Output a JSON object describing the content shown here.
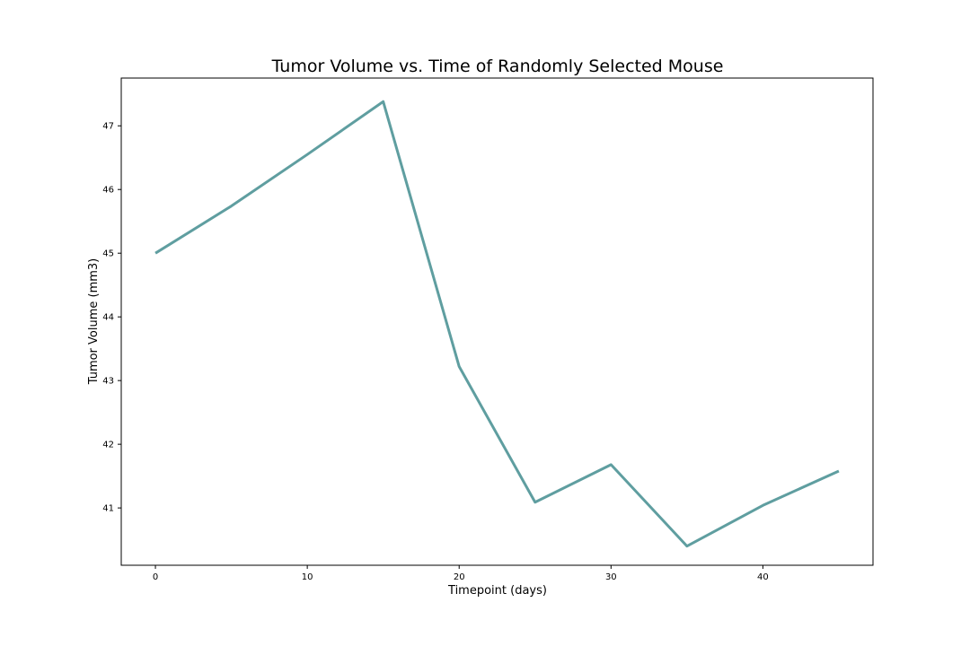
{
  "chart_data": {
    "type": "line",
    "title": "Tumor Volume vs. Time of Randomly Selected Mouse",
    "xlabel": "Timepoint (days)",
    "ylabel": "Tumor Volume (mm3)",
    "xlim": [
      -2.25,
      47.25
    ],
    "ylim": [
      40.1,
      47.75
    ],
    "xticks": [
      0,
      10,
      20,
      30,
      40
    ],
    "yticks": [
      41,
      42,
      43,
      44,
      45,
      46,
      47
    ],
    "grid": false,
    "colors": {
      "line": "#5f9ea0",
      "axes": "#000000",
      "background": "#ffffff"
    },
    "series": [
      {
        "x": [
          0,
          5,
          10,
          15,
          20,
          25,
          30,
          35,
          40,
          45
        ],
        "y": [
          45.0,
          45.74,
          46.55,
          47.38,
          43.22,
          41.09,
          41.68,
          40.4,
          41.04,
          41.58
        ]
      }
    ]
  }
}
